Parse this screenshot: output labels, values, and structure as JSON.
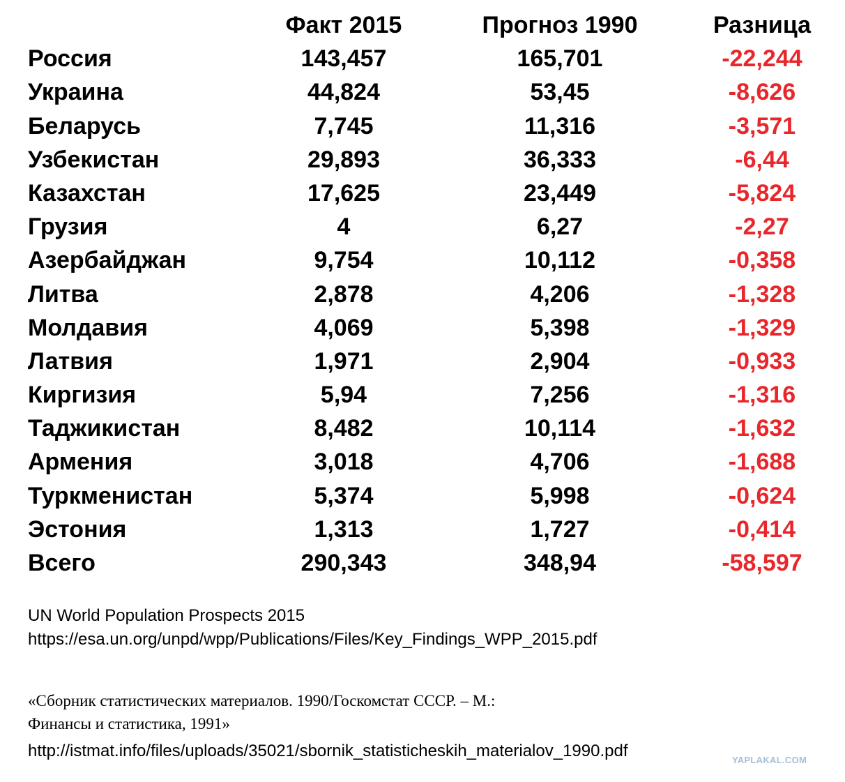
{
  "table": {
    "headers": [
      "",
      "Факт 2015",
      "Прогноз 1990",
      "Разница"
    ],
    "rows": [
      {
        "country": "Россия",
        "fact_2015": "143,457",
        "forecast_1990": "165,701",
        "difference": "-22,244"
      },
      {
        "country": "Украина",
        "fact_2015": "44,824",
        "forecast_1990": "53,45",
        "difference": "-8,626"
      },
      {
        "country": "Беларусь",
        "fact_2015": "7,745",
        "forecast_1990": "11,316",
        "difference": "-3,571"
      },
      {
        "country": "Узбекистан",
        "fact_2015": "29,893",
        "forecast_1990": "36,333",
        "difference": "-6,44"
      },
      {
        "country": "Казахстан",
        "fact_2015": "17,625",
        "forecast_1990": "23,449",
        "difference": "-5,824"
      },
      {
        "country": "Грузия",
        "fact_2015": "4",
        "forecast_1990": "6,27",
        "difference": "-2,27"
      },
      {
        "country": "Азербайджан",
        "fact_2015": "9,754",
        "forecast_1990": "10,112",
        "difference": "-0,358"
      },
      {
        "country": "Литва",
        "fact_2015": "2,878",
        "forecast_1990": "4,206",
        "difference": "-1,328"
      },
      {
        "country": "Молдавия",
        "fact_2015": "4,069",
        "forecast_1990": "5,398",
        "difference": "-1,329"
      },
      {
        "country": "Латвия",
        "fact_2015": "1,971",
        "forecast_1990": "2,904",
        "difference": "-0,933"
      },
      {
        "country": "Киргизия",
        "fact_2015": "5,94",
        "forecast_1990": "7,256",
        "difference": "-1,316"
      },
      {
        "country": "Таджикистан",
        "fact_2015": "8,482",
        "forecast_1990": "10,114",
        "difference": "-1,632"
      },
      {
        "country": "Армения",
        "fact_2015": "3,018",
        "forecast_1990": "4,706",
        "difference": "-1,688"
      },
      {
        "country": "Туркменистан",
        "fact_2015": "5,374",
        "forecast_1990": "5,998",
        "difference": "-0,624"
      },
      {
        "country": "Эстония",
        "fact_2015": "1,313",
        "forecast_1990": "1,727",
        "difference": "-0,414"
      },
      {
        "country": "Всего",
        "fact_2015": "290,343",
        "forecast_1990": "348,94",
        "difference": "-58,597"
      }
    ],
    "difference_color": "#e8262b"
  },
  "sources": {
    "un_title": "UN World Population Prospects 2015",
    "un_url": "https://esa.un.org/unpd/wpp/Publications/Files/Key_Findings_WPP_2015.pdf",
    "book_line1": "«Сборник статистических материалов. 1990/Госкомстат СССР. – М.:",
    "book_line2": "Финансы и статистика, 1991»",
    "book_url": "http://istmat.info/files/uploads/35021/sbornik_statisticheskih_materialov_1990.pdf"
  },
  "watermark": "YAPLAKAL.COM"
}
